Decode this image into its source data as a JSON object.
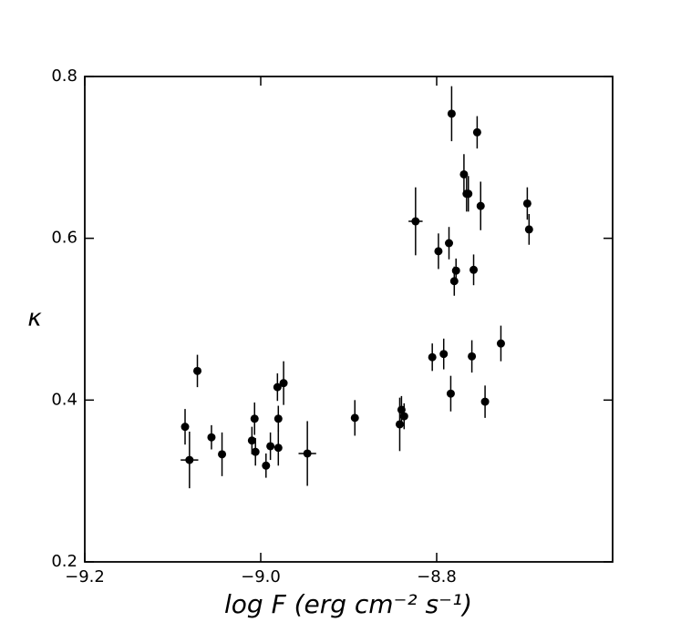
{
  "chart_data": {
    "type": "scatter",
    "xlabel": "log F (erg cm⁻² s⁻¹)",
    "ylabel": "κ",
    "xlim": [
      -9.2,
      -8.6
    ],
    "ylim": [
      0.2,
      0.8
    ],
    "xticks": [
      {
        "value": -9.2,
        "label": "−9.2"
      },
      {
        "value": -9.0,
        "label": "−9.0"
      },
      {
        "value": -8.8,
        "label": "−8.8"
      }
    ],
    "yticks": [
      0.2,
      0.4,
      0.6,
      0.8
    ],
    "color": "#000000",
    "x": [
      -9.086,
      -9.081,
      -9.072,
      -9.056,
      -9.044,
      -9.01,
      -9.007,
      -9.006,
      -8.994,
      -8.989,
      -8.981,
      -8.98,
      -8.98,
      -8.974,
      -8.947,
      -8.893,
      -8.842,
      -8.84,
      -8.837,
      -8.824,
      -8.805,
      -8.798,
      -8.792,
      -8.786,
      -8.784,
      -8.783,
      -8.78,
      -8.778,
      -8.769,
      -8.766,
      -8.764,
      -8.76,
      -8.758,
      -8.754,
      -8.75,
      -8.745,
      -8.727,
      -8.697,
      -8.695
    ],
    "y": [
      0.367,
      0.326,
      0.436,
      0.354,
      0.333,
      0.35,
      0.377,
      0.336,
      0.319,
      0.343,
      0.416,
      0.377,
      0.341,
      0.421,
      0.334,
      0.378,
      0.37,
      0.388,
      0.38,
      0.621,
      0.453,
      0.584,
      0.457,
      0.594,
      0.408,
      0.754,
      0.547,
      0.56,
      0.679,
      0.655,
      0.655,
      0.454,
      0.561,
      0.731,
      0.64,
      0.398,
      0.47,
      0.643,
      0.611
    ],
    "yerr": [
      0.022,
      0.035,
      0.02,
      0.015,
      0.027,
      0.017,
      0.02,
      0.017,
      0.015,
      0.017,
      0.017,
      0.016,
      0.022,
      0.027,
      0.04,
      0.022,
      0.033,
      0.017,
      0.016,
      0.042,
      0.017,
      0.022,
      0.019,
      0.02,
      0.022,
      0.034,
      0.018,
      0.015,
      0.025,
      0.022,
      0.022,
      0.02,
      0.019,
      0.02,
      0.03,
      0.02,
      0.022,
      0.02,
      0.019
    ],
    "xerr": [
      null,
      0.01,
      null,
      null,
      null,
      null,
      null,
      null,
      null,
      null,
      null,
      null,
      null,
      null,
      0.01,
      null,
      null,
      null,
      null,
      0.008,
      null,
      null,
      null,
      null,
      null,
      null,
      null,
      null,
      null,
      null,
      null,
      null,
      null,
      null,
      null,
      null,
      null,
      null,
      null
    ]
  }
}
